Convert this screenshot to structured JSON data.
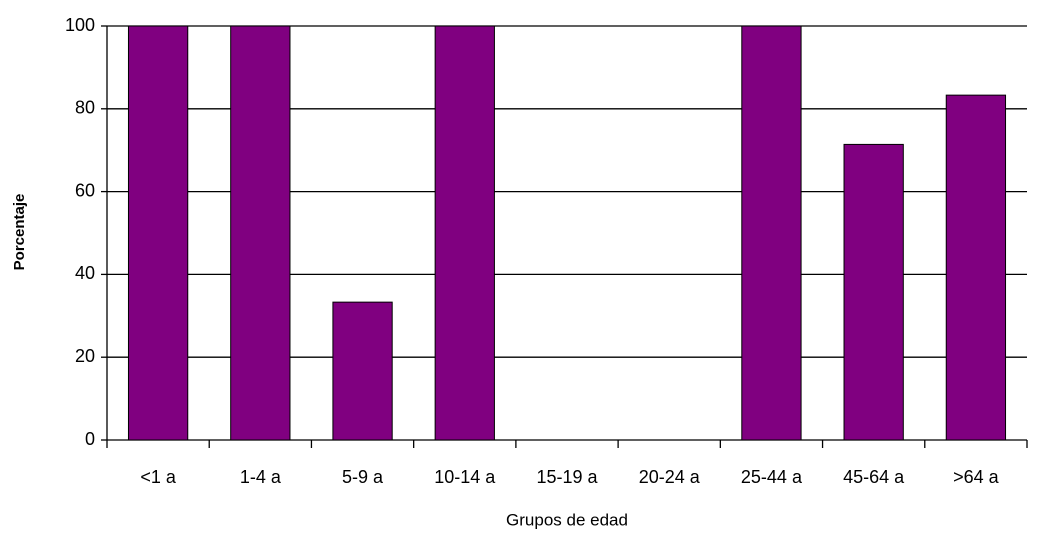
{
  "chart_data": {
    "type": "bar",
    "x_label": "Grupos de edad",
    "y_label": "Porcentaje",
    "categories": [
      "<1 a",
      "1-4 a",
      "5-9 a",
      "10-14 a",
      "15-19 a",
      "20-24 a",
      "25-44 a",
      "45-64 a",
      ">64 a"
    ],
    "values": [
      100,
      100,
      33.3,
      100,
      0,
      0,
      100,
      71.4,
      83.3
    ],
    "color": "#800080",
    "ylim": [
      0,
      100
    ],
    "yticks": [
      0,
      20,
      40,
      60,
      80,
      100
    ],
    "grid": true
  }
}
